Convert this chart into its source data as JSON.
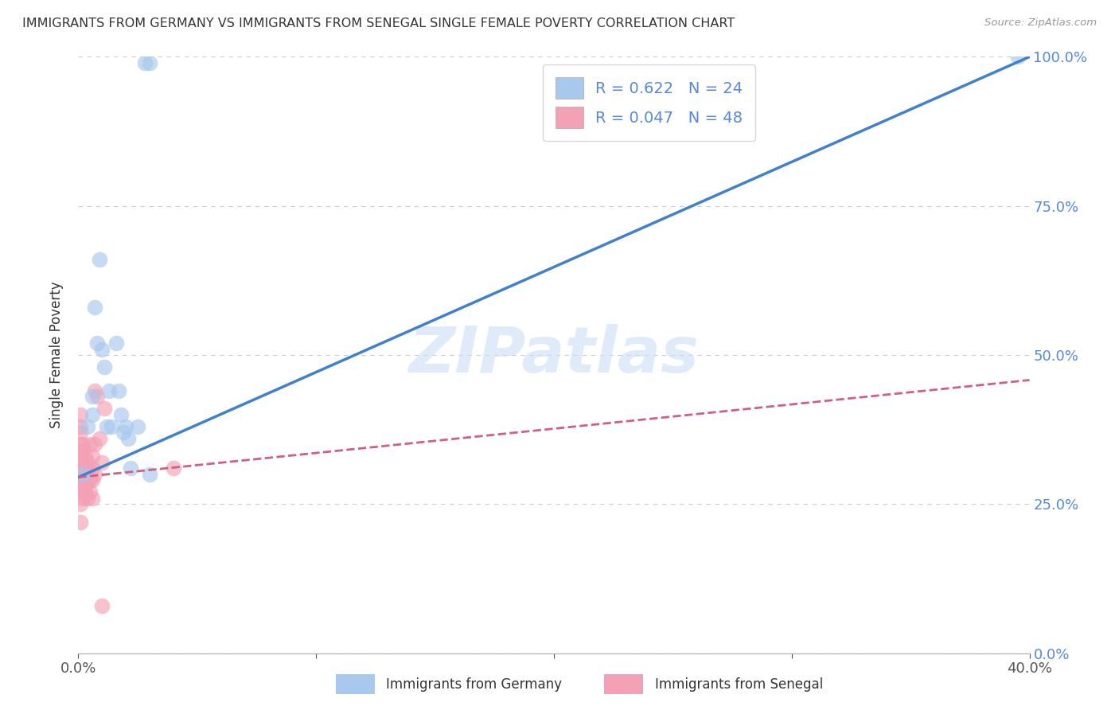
{
  "title": "IMMIGRANTS FROM GERMANY VS IMMIGRANTS FROM SENEGAL SINGLE FEMALE POVERTY CORRELATION CHART",
  "source": "Source: ZipAtlas.com",
  "ylabel": "Single Female Poverty",
  "xlim": [
    0.0,
    0.4
  ],
  "ylim": [
    0.0,
    1.0
  ],
  "xtick_vals": [
    0.0,
    0.1,
    0.2,
    0.3,
    0.4
  ],
  "xtick_labels": [
    "0.0%",
    "",
    "",
    "",
    "40.0%"
  ],
  "ytick_vals": [
    0.0,
    0.25,
    0.5,
    0.75,
    1.0
  ],
  "ytick_labels_right": [
    "0.0%",
    "25.0%",
    "50.0%",
    "75.0%",
    "100.0%"
  ],
  "watermark": "ZIPatlas",
  "germany_R": 0.622,
  "germany_N": 24,
  "senegal_R": 0.047,
  "senegal_N": 48,
  "germany_color": "#a8c8ee",
  "senegal_color": "#f4a0b5",
  "germany_line_color": "#4080cc",
  "senegal_line_color": "#d06080",
  "legend_label_germany": "Immigrants from Germany",
  "legend_label_senegal": "Immigrants from Senegal",
  "germany_x": [
    0.002,
    0.004,
    0.006,
    0.006,
    0.007,
    0.008,
    0.009,
    0.01,
    0.011,
    0.012,
    0.013,
    0.014,
    0.016,
    0.017,
    0.018,
    0.019,
    0.02,
    0.021,
    0.022,
    0.025,
    0.028,
    0.03,
    0.03,
    0.395
  ],
  "germany_y": [
    0.3,
    0.38,
    0.43,
    0.4,
    0.58,
    0.52,
    0.66,
    0.51,
    0.48,
    0.38,
    0.44,
    0.38,
    0.52,
    0.44,
    0.4,
    0.37,
    0.38,
    0.36,
    0.31,
    0.38,
    0.99,
    0.99,
    0.3,
    1.0
  ],
  "senegal_x": [
    0.001,
    0.001,
    0.001,
    0.001,
    0.001,
    0.001,
    0.001,
    0.001,
    0.001,
    0.001,
    0.001,
    0.001,
    0.001,
    0.001,
    0.002,
    0.002,
    0.002,
    0.002,
    0.002,
    0.002,
    0.002,
    0.002,
    0.002,
    0.003,
    0.003,
    0.003,
    0.003,
    0.003,
    0.004,
    0.004,
    0.004,
    0.004,
    0.005,
    0.005,
    0.005,
    0.006,
    0.006,
    0.006,
    0.006,
    0.007,
    0.007,
    0.007,
    0.008,
    0.009,
    0.01,
    0.01,
    0.011,
    0.04
  ],
  "senegal_y": [
    0.3,
    0.29,
    0.27,
    0.32,
    0.34,
    0.25,
    0.31,
    0.28,
    0.22,
    0.37,
    0.35,
    0.33,
    0.38,
    0.4,
    0.27,
    0.3,
    0.31,
    0.34,
    0.29,
    0.32,
    0.28,
    0.35,
    0.26,
    0.3,
    0.28,
    0.33,
    0.27,
    0.31,
    0.29,
    0.32,
    0.26,
    0.31,
    0.29,
    0.35,
    0.27,
    0.31,
    0.29,
    0.33,
    0.26,
    0.44,
    0.35,
    0.3,
    0.43,
    0.36,
    0.08,
    0.32,
    0.41,
    0.31
  ],
  "germany_line_x0": 0.0,
  "germany_line_y0": 0.295,
  "germany_line_x1": 0.4,
  "germany_line_y1": 1.0,
  "senegal_line_x0": 0.0,
  "senegal_line_y0": 0.295,
  "senegal_line_x1": 0.4,
  "senegal_line_y1": 0.458
}
